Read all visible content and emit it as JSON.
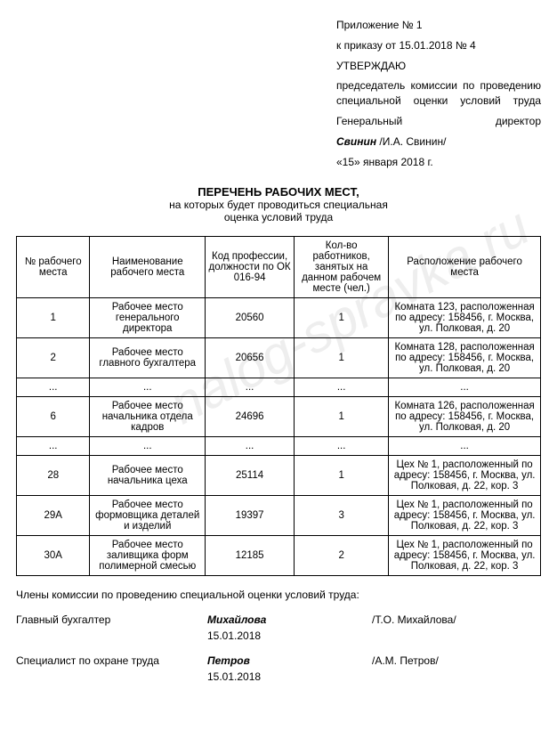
{
  "header": {
    "line1": "Приложение № 1",
    "line2": "к приказу от 15.01.2018 № 4",
    "line3": "УТВЕРЖДАЮ",
    "line4": "председатель комиссии по проведению специальной оценки условий труда",
    "director_title_left": "Генеральный",
    "director_title_right": "директор",
    "director_sig": "Свинин",
    "director_name": " /И.А. Свинин/",
    "date_line": "«15» января 2018 г."
  },
  "title": {
    "main": "ПЕРЕЧЕНЬ РАБОЧИХ МЕСТ,",
    "sub1": "на которых будет проводиться специальная",
    "sub2": "оценка условий труда"
  },
  "table": {
    "headers": {
      "c1": "№ рабочего места",
      "c2": "Наименование рабочего места",
      "c3": "Код профессии, должности по ОК 016-94",
      "c4": "Кол-во работников, занятых на данном рабочем месте (чел.)",
      "c5": "Расположение рабочего места"
    },
    "rows": [
      {
        "c1": "1",
        "c2": "Рабочее место генерального директора",
        "c3": "20560",
        "c4": "1",
        "c5": "Комната 123, расположенная по адресу: 158456, г. Москва, ул. Полковая, д. 20"
      },
      {
        "c1": "2",
        "c2": "Рабочее место главного бухгалтера",
        "c3": "20656",
        "c4": "1",
        "c5": "Комната 128, расположенная по адресу: 158456, г. Москва, ул. Полковая, д. 20"
      },
      {
        "c1": "...",
        "c2": "...",
        "c3": "...",
        "c4": "...",
        "c5": "..."
      },
      {
        "c1": "6",
        "c2": "Рабочее место начальника отдела кадров",
        "c3": "24696",
        "c4": "1",
        "c5": "Комната 126, расположенная по адресу: 158456, г. Москва, ул. Полковая, д. 20"
      },
      {
        "c1": "...",
        "c2": "...",
        "c3": "...",
        "c4": "...",
        "c5": "..."
      },
      {
        "c1": "28",
        "c2": "Рабочее место начальника цеха",
        "c3": "25114",
        "c4": "1",
        "c5": "Цех № 1, расположенный по адресу: 158456, г. Москва, ул. Полковая, д. 22, кор. 3"
      },
      {
        "c1": "29А",
        "c2": "Рабочее место формовщика деталей и изделий",
        "c3": "19397",
        "c4": "3",
        "c5": "Цех № 1, расположенный по адресу: 158456, г. Москва, ул. Полковая, д. 22, кор. 3"
      },
      {
        "c1": "30А",
        "c2": "Рабочее место заливщика форм полимерной смесью",
        "c3": "12185",
        "c4": "2",
        "c5": "Цех № 1, расположенный по адресу: 158456, г. Москва, ул. Полковая, д. 22, кор. 3"
      }
    ]
  },
  "members_title": "Члены комиссии по проведению специальной оценки условий труда:",
  "signatures": [
    {
      "role": "Главный бухгалтер",
      "name": "Михайлова",
      "full": "/Т.О. Михайлова/",
      "date": "15.01.2018"
    },
    {
      "role": "Специалист по охране труда",
      "name": "Петров",
      "full": "/А.М. Петров/",
      "date": "15.01.2018"
    }
  ],
  "watermark": "nalog-spravka.ru"
}
